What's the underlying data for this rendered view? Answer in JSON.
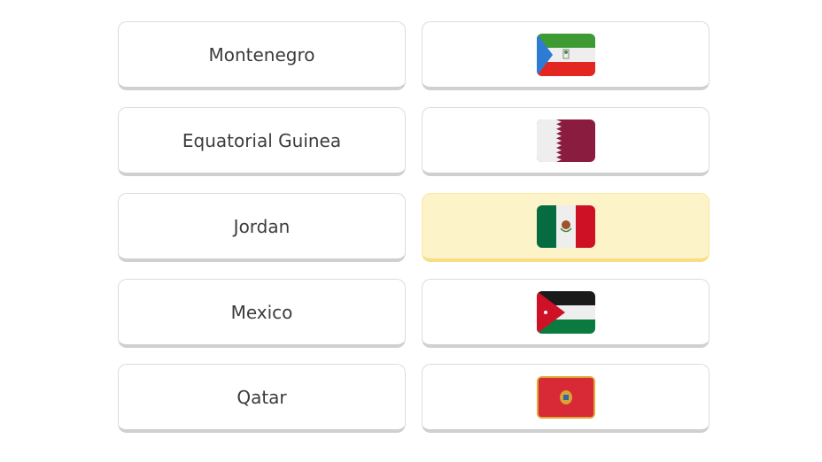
{
  "countries": [
    "Montenegro",
    "Equatorial Guinea",
    "Jordan",
    "Mexico",
    "Qatar"
  ],
  "flags": [
    {
      "country": "Equatorial Guinea",
      "icon": "equatorial-guinea-flag-icon",
      "selected": false
    },
    {
      "country": "Qatar",
      "icon": "qatar-flag-icon",
      "selected": false
    },
    {
      "country": "Mexico",
      "icon": "mexico-flag-icon",
      "selected": true
    },
    {
      "country": "Jordan",
      "icon": "jordan-flag-icon",
      "selected": false
    },
    {
      "country": "Montenegro",
      "icon": "montenegro-flag-icon",
      "selected": false
    }
  ],
  "colors": {
    "selected_bg": "#fdf3c8",
    "selected_border": "#f8dd85"
  }
}
